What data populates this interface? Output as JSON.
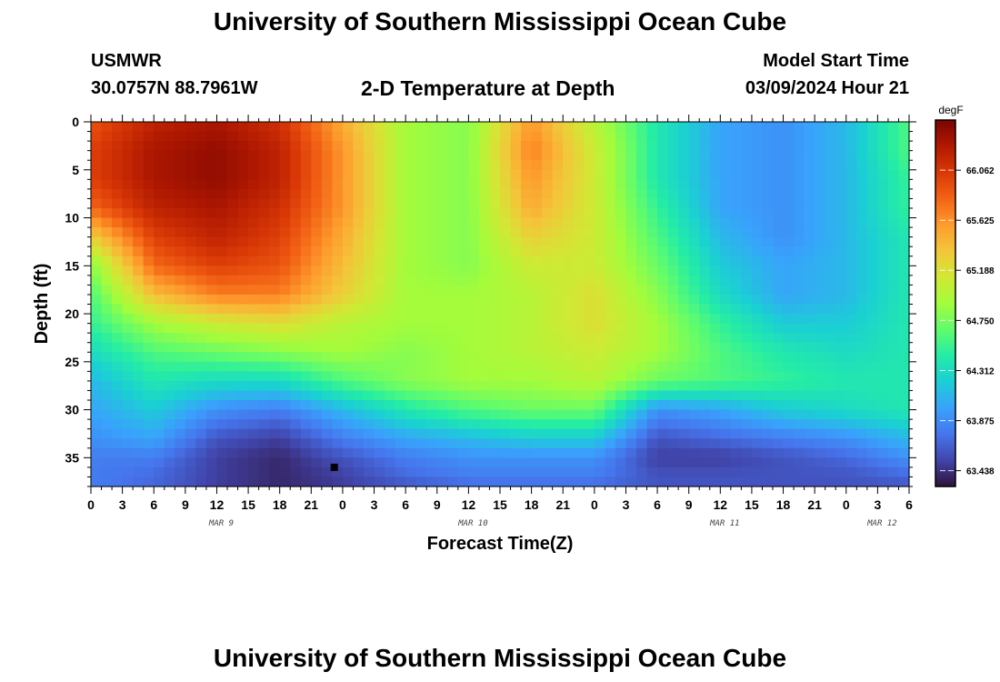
{
  "header": {
    "title": "University of Southern Mississippi Ocean Cube",
    "station": "USMWR",
    "coords": "30.0757N  88.7961W",
    "subtitle": "2-D Temperature at Depth",
    "start_label": "Model Start Time",
    "start_time": "03/09/2024 Hour 21",
    "footer_title": "University of Southern Mississippi Ocean Cube"
  },
  "chart_data": {
    "type": "heatmap",
    "title": "2-D Temperature at Depth",
    "xlabel": "Forecast Time(Z)",
    "ylabel": "Depth (ft)",
    "xlim": [
      0,
      78
    ],
    "ylim": [
      38,
      0
    ],
    "x_tick_step_hours": 3,
    "x_tick_labels": [
      "0",
      "3",
      "6",
      "9",
      "12",
      "15",
      "18",
      "21",
      "0",
      "3",
      "6",
      "9",
      "12",
      "15",
      "18",
      "21",
      "0",
      "3",
      "6",
      "9",
      "12",
      "15",
      "18",
      "21",
      "0",
      "3",
      "6"
    ],
    "y_ticks": [
      0,
      5,
      10,
      15,
      20,
      25,
      30,
      35
    ],
    "date_labels": [
      {
        "label": "MAR 9",
        "hour": 12
      },
      {
        "label": "MAR 10",
        "hour": 36
      },
      {
        "label": "MAR 11",
        "hour": 60
      },
      {
        "label": "MAR 12",
        "hour": 75
      }
    ],
    "colorbar": {
      "unit": "degF",
      "min": 63.3,
      "max": 66.5,
      "ticks": [
        66.062,
        65.625,
        65.188,
        64.75,
        64.312,
        63.875,
        63.438
      ],
      "colors": [
        "#30123b",
        "#4145ab",
        "#4675ed",
        "#39a2fc",
        "#1bcfd4",
        "#24eca6",
        "#61fc6c",
        "#a4fc3b",
        "#d1e834",
        "#f3c63a",
        "#fe9b2d",
        "#f36315",
        "#d93806",
        "#b11901",
        "#7a0402"
      ]
    },
    "marker": {
      "hour": 23.2,
      "depth": 36
    },
    "grid": false,
    "legend": "colorbar right",
    "depths_ft": [
      0,
      3,
      6,
      9,
      12,
      15,
      18,
      21,
      24,
      27,
      30,
      33,
      35,
      37,
      38
    ],
    "hours": [
      0,
      6,
      12,
      18,
      24,
      30,
      36,
      42,
      48,
      54,
      60,
      66,
      72,
      78
    ],
    "temperature_degF": [
      [
        65.9,
        66.2,
        66.3,
        66.1,
        65.5,
        64.9,
        64.8,
        65.6,
        65.0,
        64.4,
        64.0,
        63.9,
        64.1,
        64.6
      ],
      [
        66.0,
        66.3,
        66.4,
        66.2,
        65.6,
        64.9,
        64.8,
        65.7,
        65.1,
        64.4,
        64.0,
        63.9,
        64.1,
        64.6
      ],
      [
        66.0,
        66.3,
        66.4,
        66.2,
        65.6,
        64.9,
        64.8,
        65.6,
        65.1,
        64.4,
        64.0,
        63.9,
        64.1,
        64.5
      ],
      [
        65.8,
        66.2,
        66.3,
        66.1,
        65.6,
        64.9,
        64.8,
        65.5,
        65.1,
        64.5,
        64.0,
        63.9,
        64.1,
        64.5
      ],
      [
        65.3,
        66.0,
        66.2,
        66.0,
        65.5,
        64.9,
        64.8,
        65.3,
        65.1,
        64.6,
        64.1,
        63.9,
        64.1,
        64.4
      ],
      [
        64.8,
        65.8,
        66.0,
        65.9,
        65.4,
        64.9,
        64.8,
        65.1,
        65.1,
        64.7,
        64.2,
        64.0,
        64.1,
        64.4
      ],
      [
        64.6,
        65.4,
        65.7,
        65.7,
        65.3,
        64.9,
        64.9,
        65.0,
        65.2,
        64.8,
        64.3,
        64.0,
        64.1,
        64.4
      ],
      [
        64.5,
        64.9,
        65.1,
        65.2,
        65.0,
        64.9,
        64.9,
        65.0,
        65.2,
        64.9,
        64.5,
        64.2,
        64.2,
        64.4
      ],
      [
        64.3,
        64.6,
        64.7,
        64.8,
        64.9,
        64.8,
        64.9,
        65.0,
        65.1,
        64.9,
        64.6,
        64.4,
        64.3,
        64.4
      ],
      [
        64.1,
        64.4,
        64.3,
        64.3,
        64.6,
        64.8,
        64.9,
        64.9,
        65.0,
        64.7,
        64.6,
        64.5,
        64.4,
        64.4
      ],
      [
        64.0,
        64.2,
        63.9,
        63.8,
        64.1,
        64.4,
        64.6,
        64.7,
        64.7,
        63.9,
        64.0,
        64.2,
        64.3,
        64.4
      ],
      [
        63.9,
        64.0,
        63.6,
        63.5,
        63.8,
        64.0,
        64.1,
        64.2,
        64.2,
        63.6,
        63.7,
        63.8,
        63.9,
        64.1
      ],
      [
        63.8,
        63.8,
        63.5,
        63.4,
        63.6,
        63.8,
        63.9,
        63.9,
        63.9,
        63.5,
        63.5,
        63.6,
        63.7,
        63.9
      ],
      [
        63.8,
        63.7,
        63.5,
        63.4,
        63.5,
        63.7,
        63.8,
        63.8,
        63.8,
        63.6,
        63.6,
        63.6,
        63.6,
        63.7
      ],
      [
        63.8,
        63.7,
        63.5,
        63.4,
        63.5,
        63.6,
        63.7,
        63.7,
        63.7,
        63.6,
        63.6,
        63.6,
        63.6,
        63.6
      ]
    ]
  }
}
